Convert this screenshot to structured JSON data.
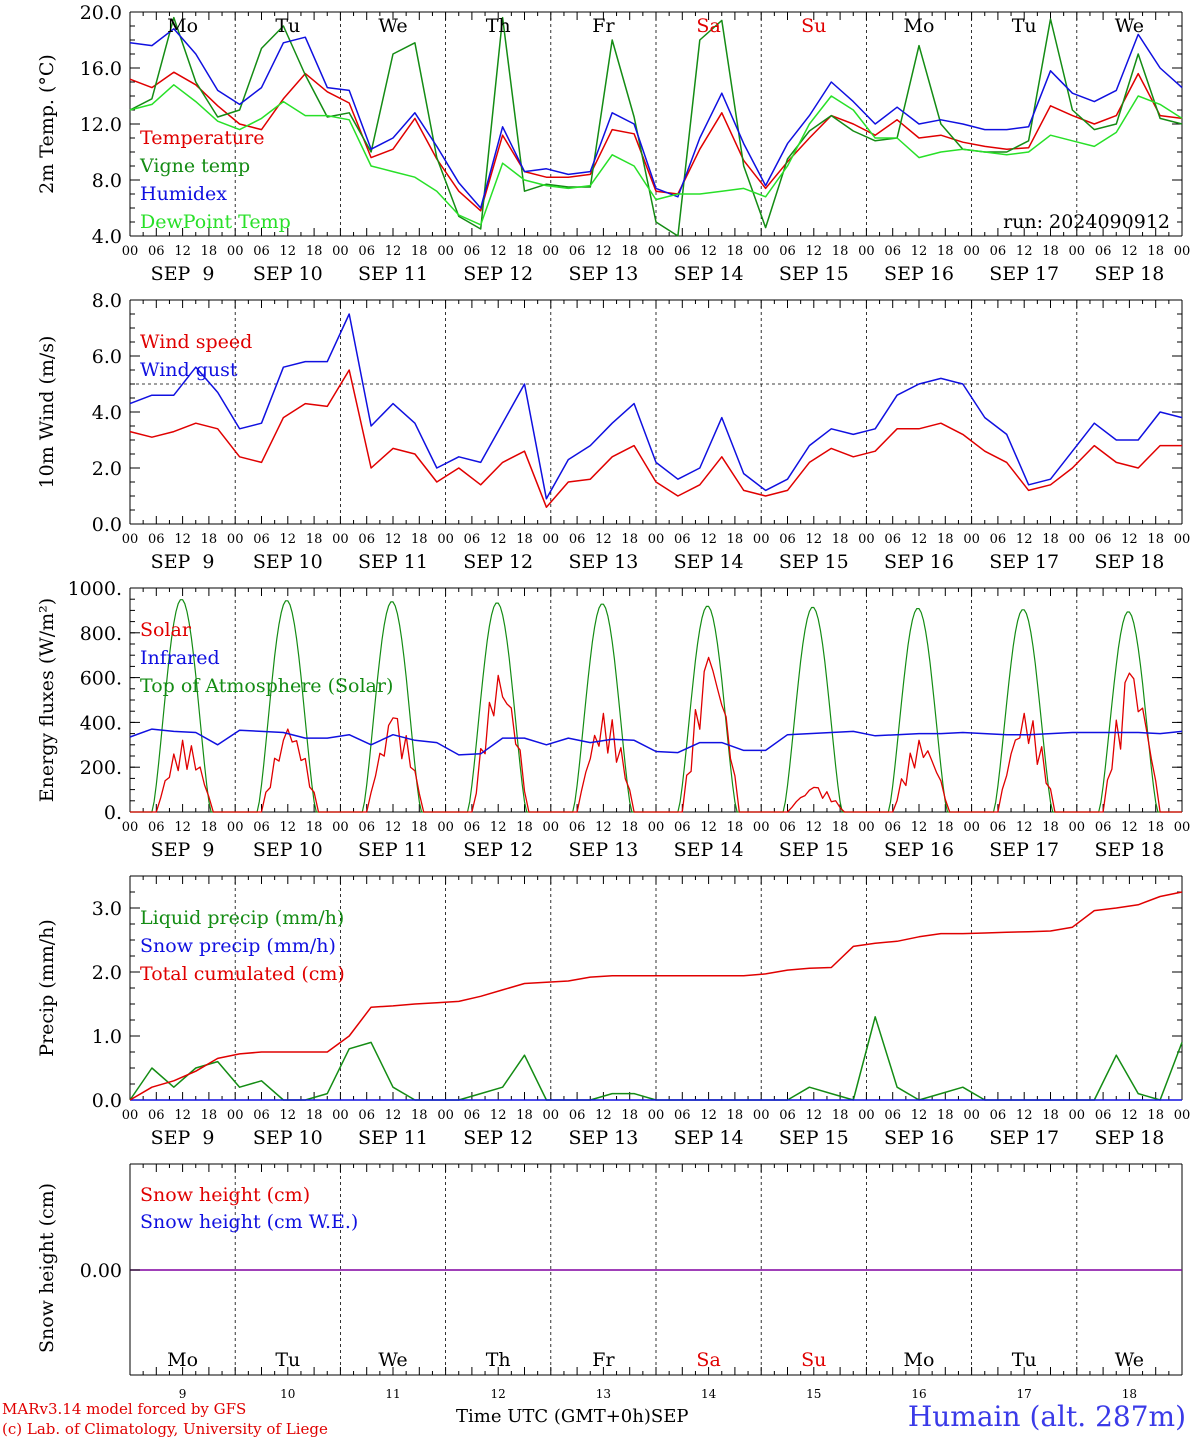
{
  "station": "Humain (alt. 287m)",
  "credits": [
    "MARv3.14 model forced by GFS",
    "(c) Lab. of Climatology, University of Liege"
  ],
  "x_axis_title": "Time UTC (GMT+0h)",
  "month": "SEP",
  "run_label": "run: 2024090912",
  "hour_ticks": [
    "00",
    "06",
    "12",
    "18"
  ],
  "date_labels": [
    "SEP  9",
    "SEP 10",
    "SEP 11",
    "SEP 12",
    "SEP 13",
    "SEP 14",
    "SEP 15",
    "SEP 16",
    "SEP 17",
    "SEP 18"
  ],
  "days": [
    {
      "abbr": "Mo",
      "num": "9",
      "weekend": false
    },
    {
      "abbr": "Tu",
      "num": "10",
      "weekend": false
    },
    {
      "abbr": "We",
      "num": "11",
      "weekend": false
    },
    {
      "abbr": "Th",
      "num": "12",
      "weekend": false
    },
    {
      "abbr": "Fr",
      "num": "13",
      "weekend": false
    },
    {
      "abbr": "Sa",
      "num": "14",
      "weekend": true
    },
    {
      "abbr": "Su",
      "num": "15",
      "weekend": true
    },
    {
      "abbr": "Mo",
      "num": "16",
      "weekend": false
    },
    {
      "abbr": "Tu",
      "num": "17",
      "weekend": false
    },
    {
      "abbr": "We",
      "num": "18",
      "weekend": false
    }
  ],
  "colors": {
    "red": "#e00000",
    "green": "#148c14",
    "blue": "#1010e0",
    "lightgreen": "#28e028",
    "purple": "#8000a0",
    "weekend": "#e00000"
  },
  "chart_data": [
    {
      "type": "line",
      "ylabel": "2m Temp. (°C)",
      "ylim": [
        4,
        20
      ],
      "yticks": [
        "4.0",
        "8.0",
        "12.0",
        "16.0",
        "20.0"
      ],
      "ytick_values": [
        4,
        8,
        12,
        16,
        20
      ],
      "x": "hours since SEP 9 00 UTC, step 6",
      "series": [
        {
          "name": "Temperature",
          "color": "red",
          "values": [
            15.2,
            14.6,
            15.7,
            14.8,
            13.3,
            12.0,
            11.6,
            13.8,
            15.6,
            14.3,
            13.5,
            9.6,
            10.2,
            12.4,
            9.5,
            7.2,
            5.8,
            11.2,
            8.6,
            8.2,
            8.2,
            8.4,
            11.6,
            11.3,
            7.2,
            7.0,
            10.2,
            12.8,
            9.4,
            7.4,
            9.3,
            11.0,
            12.6,
            12.0,
            11.2,
            12.3,
            11.0,
            11.2,
            10.7,
            10.4,
            10.2,
            10.3,
            13.3,
            12.6,
            12.0,
            12.6,
            15.6,
            12.6,
            12.4
          ]
        },
        {
          "name": "Vigne temp",
          "color": "green",
          "values": [
            13.0,
            13.8,
            19.6,
            15.0,
            12.5,
            13.0,
            17.4,
            19.0,
            15.5,
            12.5,
            12.8,
            10.0,
            17.0,
            17.8,
            9.6,
            5.4,
            4.5,
            19.6,
            7.2,
            7.7,
            7.5,
            7.5,
            18.0,
            12.5,
            5.0,
            4.0,
            18.0,
            19.4,
            9.0,
            4.6,
            9.5,
            11.5,
            12.6,
            11.5,
            10.8,
            11.0,
            17.6,
            12.0,
            10.2,
            10.0,
            10.0,
            10.8,
            19.5,
            13.0,
            11.6,
            12.0,
            17.0,
            12.4,
            12.0
          ]
        },
        {
          "name": "Humidex",
          "color": "blue",
          "values": [
            17.8,
            17.6,
            18.8,
            17.0,
            14.4,
            13.4,
            14.6,
            17.8,
            18.2,
            14.6,
            14.4,
            10.2,
            11.0,
            12.8,
            10.4,
            7.8,
            6.0,
            11.8,
            8.6,
            8.8,
            8.4,
            8.6,
            12.8,
            12.0,
            7.4,
            6.8,
            11.0,
            14.2,
            10.6,
            7.6,
            10.6,
            12.6,
            15.0,
            13.6,
            12.0,
            13.2,
            12.0,
            12.3,
            12.0,
            11.6,
            11.6,
            11.8,
            15.8,
            14.2,
            13.6,
            14.4,
            18.4,
            16.0,
            14.6
          ]
        },
        {
          "name": "DewPoint Temp",
          "color": "lightgreen",
          "values": [
            13.0,
            13.4,
            14.8,
            13.6,
            12.2,
            11.6,
            12.4,
            13.6,
            12.6,
            12.6,
            12.3,
            9.0,
            8.6,
            8.2,
            7.2,
            5.5,
            4.8,
            9.2,
            8.0,
            7.6,
            7.4,
            7.6,
            9.8,
            9.0,
            6.6,
            7.0,
            7.0,
            7.2,
            7.4,
            6.8,
            9.0,
            12.0,
            14.0,
            13.0,
            11.0,
            11.0,
            9.6,
            10.0,
            10.2,
            10.0,
            9.8,
            10.0,
            11.2,
            10.8,
            10.4,
            11.4,
            14.0,
            13.4,
            12.4
          ]
        }
      ]
    },
    {
      "type": "line",
      "ylabel": "10m Wind (m/s)",
      "ylim": [
        0,
        8
      ],
      "yticks": [
        "0.0",
        "2.0",
        "4.0",
        "6.0",
        "8.0"
      ],
      "ytick_values": [
        0,
        2,
        4,
        6,
        8
      ],
      "hline": 5,
      "series": [
        {
          "name": "Wind speed",
          "color": "red",
          "values": [
            3.3,
            3.1,
            3.3,
            3.6,
            3.4,
            2.4,
            2.2,
            3.8,
            4.3,
            4.2,
            5.5,
            2.0,
            2.7,
            2.5,
            1.5,
            2.0,
            1.4,
            2.2,
            2.6,
            0.6,
            1.5,
            1.6,
            2.4,
            2.8,
            1.5,
            1.0,
            1.4,
            2.4,
            1.2,
            1.0,
            1.2,
            2.2,
            2.7,
            2.4,
            2.6,
            3.4,
            3.4,
            3.6,
            3.2,
            2.6,
            2.2,
            1.2,
            1.4,
            2.0,
            2.8,
            2.2,
            2.0,
            2.8,
            2.8
          ]
        },
        {
          "name": "Wind gust",
          "color": "blue",
          "values": [
            4.3,
            4.6,
            4.6,
            5.6,
            4.7,
            3.4,
            3.6,
            5.6,
            5.8,
            5.8,
            7.5,
            3.5,
            4.3,
            3.6,
            2.0,
            2.4,
            2.2,
            3.6,
            5.0,
            0.9,
            2.3,
            2.8,
            3.6,
            4.3,
            2.2,
            1.6,
            2.0,
            3.8,
            1.8,
            1.2,
            1.6,
            2.8,
            3.4,
            3.2,
            3.4,
            4.6,
            5.0,
            5.2,
            5.0,
            3.8,
            3.2,
            1.4,
            1.6,
            2.6,
            3.6,
            3.0,
            3.0,
            4.0,
            3.8
          ]
        }
      ]
    },
    {
      "type": "line",
      "ylabel": "Energy fluxes (W/m²)",
      "ylim": [
        0,
        1000
      ],
      "yticks": [
        "0.",
        "200.",
        "400.",
        "600.",
        "800.",
        "1000."
      ],
      "ytick_values": [
        0,
        200,
        400,
        600,
        800,
        1000
      ],
      "series": [
        {
          "name": "Solar",
          "color": "red",
          "peaks": [
            320,
            370,
            420,
            610,
            440,
            690,
            110,
            320,
            440,
            620
          ]
        },
        {
          "name": "Infrared",
          "color": "blue",
          "values": [
            335,
            370,
            360,
            355,
            300,
            365,
            360,
            355,
            330,
            330,
            345,
            300,
            345,
            320,
            310,
            255,
            260,
            330,
            330,
            300,
            330,
            310,
            325,
            320,
            270,
            265,
            310,
            310,
            275,
            275,
            345,
            350,
            355,
            360,
            340,
            345,
            350,
            350,
            355,
            350,
            345,
            345,
            350,
            355,
            355,
            355,
            355,
            350,
            360
          ]
        },
        {
          "name": "Top of Atmosphere (Solar)",
          "color": "green",
          "peaks": [
            950,
            945,
            940,
            935,
            930,
            920,
            915,
            910,
            905,
            895
          ]
        }
      ]
    },
    {
      "type": "line",
      "ylabel": "Precip (mm/h)",
      "ylim": [
        0,
        3.5
      ],
      "yticks": [
        "0.0",
        "1.0",
        "2.0",
        "3.0"
      ],
      "ytick_values": [
        0,
        1,
        2,
        3
      ],
      "series": [
        {
          "name": "Liquid precip (mm/h)",
          "color": "green",
          "values": [
            0.0,
            0.5,
            0.2,
            0.5,
            0.6,
            0.2,
            0.3,
            0.0,
            0.0,
            0.1,
            0.8,
            0.9,
            0.2,
            0.0,
            0.0,
            0.0,
            0.1,
            0.2,
            0.7,
            0.0,
            0.0,
            0.0,
            0.1,
            0.1,
            0.0,
            0.0,
            0.0,
            0.0,
            0.0,
            0.0,
            0.0,
            0.2,
            0.1,
            0.0,
            1.3,
            0.2,
            0.0,
            0.1,
            0.2,
            0.0,
            0.0,
            0.0,
            0.0,
            0.0,
            0.0,
            0.7,
            0.1,
            0.0,
            0.9
          ]
        },
        {
          "name": "Snow precip (mm/h)",
          "color": "blue",
          "values": [
            0,
            0,
            0,
            0,
            0,
            0,
            0,
            0,
            0,
            0,
            0,
            0,
            0,
            0,
            0,
            0,
            0,
            0,
            0,
            0,
            0,
            0,
            0,
            0,
            0,
            0,
            0,
            0,
            0,
            0,
            0,
            0,
            0,
            0,
            0,
            0,
            0,
            0,
            0,
            0,
            0,
            0,
            0,
            0,
            0,
            0,
            0,
            0,
            0
          ]
        },
        {
          "name": "Total cumulated (cm)",
          "color": "red",
          "values": [
            0.0,
            0.2,
            0.3,
            0.45,
            0.65,
            0.72,
            0.75,
            0.75,
            0.75,
            0.75,
            1.0,
            1.45,
            1.47,
            1.5,
            1.52,
            1.54,
            1.62,
            1.72,
            1.82,
            1.84,
            1.86,
            1.92,
            1.94,
            1.94,
            1.94,
            1.94,
            1.94,
            1.94,
            1.94,
            1.97,
            2.03,
            2.06,
            2.07,
            2.4,
            2.45,
            2.48,
            2.55,
            2.6,
            2.6,
            2.61,
            2.62,
            2.63,
            2.64,
            2.7,
            2.96,
            3.0,
            3.05,
            3.18,
            3.25
          ]
        }
      ]
    },
    {
      "type": "line",
      "ylabel": "Snow height (cm)",
      "yticks": [
        "0.00"
      ],
      "ytick_values": [
        0
      ],
      "series": [
        {
          "name": "Snow height (cm)",
          "color": "red",
          "values": [
            0
          ]
        },
        {
          "name": "Snow height (cm W.E.)",
          "color": "blue",
          "values": [
            0
          ]
        }
      ]
    }
  ]
}
